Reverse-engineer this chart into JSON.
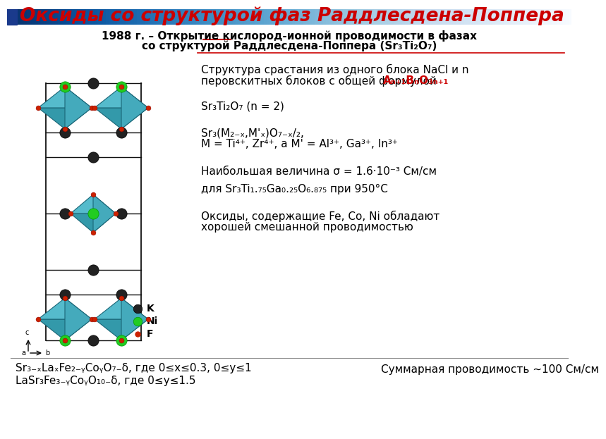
{
  "title": "Оксиды со структурой фаз Раддлесдена-Поппера",
  "title_color": "#cc0000",
  "title_fontsize": 19,
  "background_color": "#ffffff",
  "header_bar_color": "#1a3a8c",
  "subtitle_line1": "1988 г. – Открытие кислород-ионной проводимости в фазах",
  "subtitle_line2": "со структурой Раддлесдена-Поппера (Sr₃Ti₂O₇)",
  "subtitle_fontsize": 11,
  "text1_l1": "Структура срастания из одного блока NaCl и n",
  "text1_l2": "перовскитных блоков с общей формулой ",
  "text1_formula": "Aₙ₊₁BₙO₃ₙ₊₁",
  "text2": "Sr₃Ti₂O₇ (n = 2)",
  "text3_l1": "Sr₃(M₂₋ₓ,M'ₓ)O₇₋ₓ/₂,",
  "text3_l2": "M = Ti⁴⁺, Zr⁴⁺, а M' = Al³⁺, Ga³⁺, In³⁺",
  "text4": "Наибольшая величина σ = 1.6·10⁻³ См/см",
  "text5": "для Sr₃Ti₁.₇₅Ga₀.₂₅O₆.₈₇₅ при 950°С",
  "text6_l1": "Оксиды, содержащие Fe, Co, Ni обладают",
  "text6_l2": "хорошей смешанной проводимостью",
  "bottom_line1": "Sr₃₋ₓLaₓFe₂₋ᵧCoᵧO₇₋δ, где 0≤x≤0.3, 0≤y≤1",
  "bottom_line2": "LaSr₃Fe₃₋ᵧCoᵧO₁₀₋δ, где 0≤y≤1.5",
  "bottom_right": "Суммарная проводимость ~100 См/см",
  "text_fontsize": 11,
  "formula_color": "#cc0000",
  "teal_color": "#3399aa",
  "teal_dark": "#1a6677",
  "teal_light": "#55bbcc",
  "black_dot": "#222222",
  "green_dot": "#22cc22",
  "red_dot": "#cc2200"
}
